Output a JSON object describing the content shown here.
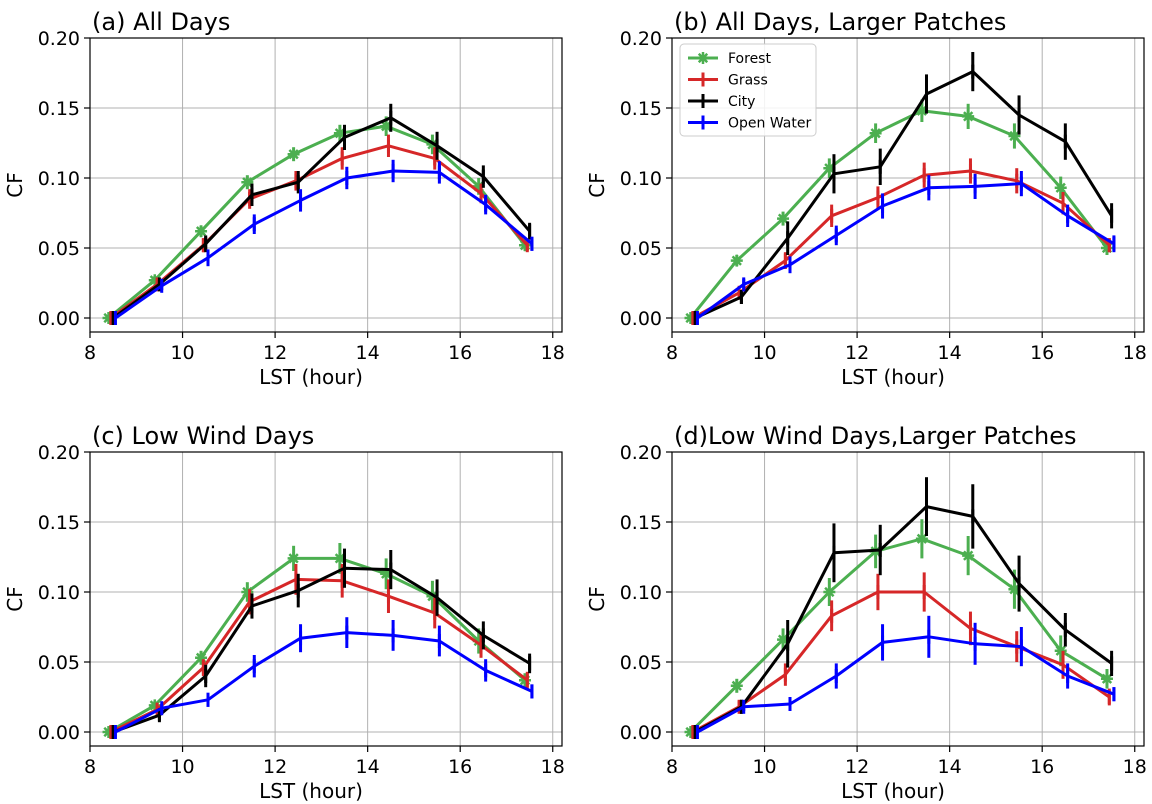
{
  "chart_data": [
    {
      "type": "line",
      "title": "(a) All Days",
      "xlabel": "LST (hour)",
      "ylabel": "CF",
      "xlim": [
        8,
        18.2
      ],
      "ylim": [
        -0.01,
        0.2
      ],
      "xticks": [
        8,
        10,
        12,
        14,
        16,
        18
      ],
      "yticks": [
        0.0,
        0.05,
        0.1,
        0.15,
        0.2
      ],
      "xtick_labels": [
        "8",
        "10",
        "12",
        "14",
        "16",
        "18"
      ],
      "ytick_labels": [
        "0.00",
        "0.05",
        "0.10",
        "0.15",
        "0.20"
      ],
      "grid": true,
      "legend": null,
      "series": [
        {
          "name": "Forest",
          "color": "#4caf50",
          "marker": "star",
          "x": [
            8.4,
            9.4,
            10.4,
            11.4,
            12.4,
            13.4,
            14.4,
            15.4,
            16.4,
            17.4
          ],
          "y": [
            0.0,
            0.027,
            0.062,
            0.097,
            0.117,
            0.132,
            0.137,
            0.124,
            0.094,
            0.052
          ],
          "err": [
            0,
            0.003,
            0.004,
            0.005,
            0.005,
            0.006,
            0.007,
            0.007,
            0.006,
            0.004
          ]
        },
        {
          "name": "Grass",
          "color": "#d62728",
          "marker": "bar",
          "x": [
            8.45,
            9.45,
            10.45,
            11.45,
            12.45,
            13.45,
            14.45,
            15.45,
            16.45,
            17.45
          ],
          "y": [
            0.0,
            0.024,
            0.052,
            0.085,
            0.098,
            0.114,
            0.123,
            0.114,
            0.089,
            0.052
          ],
          "err": [
            0,
            0.003,
            0.005,
            0.007,
            0.007,
            0.008,
            0.008,
            0.008,
            0.007,
            0.004
          ]
        },
        {
          "name": "City",
          "color": "#000000",
          "marker": "bar",
          "x": [
            8.5,
            9.5,
            10.5,
            11.5,
            12.5,
            13.5,
            14.5,
            15.5,
            16.5,
            17.5
          ],
          "y": [
            0.0,
            0.024,
            0.053,
            0.088,
            0.097,
            0.129,
            0.143,
            0.123,
            0.101,
            0.062
          ],
          "err": [
            0,
            0.003,
            0.006,
            0.008,
            0.008,
            0.009,
            0.01,
            0.01,
            0.008,
            0.006
          ]
        },
        {
          "name": "Open Water",
          "color": "#0000ff",
          "marker": "bar",
          "x": [
            8.55,
            9.55,
            10.55,
            11.55,
            12.55,
            13.55,
            14.55,
            15.55,
            16.55,
            17.55
          ],
          "y": [
            0.0,
            0.023,
            0.043,
            0.067,
            0.084,
            0.1,
            0.105,
            0.104,
            0.081,
            0.053
          ],
          "err": [
            0,
            0.003,
            0.006,
            0.007,
            0.008,
            0.008,
            0.008,
            0.008,
            0.007,
            0.005
          ]
        }
      ]
    },
    {
      "type": "line",
      "title": "(b) All Days, Larger Patches",
      "xlabel": "LST (hour)",
      "ylabel": "CF",
      "xlim": [
        8,
        18.2
      ],
      "ylim": [
        -0.01,
        0.2
      ],
      "xticks": [
        8,
        10,
        12,
        14,
        16,
        18
      ],
      "yticks": [
        0.0,
        0.05,
        0.1,
        0.15,
        0.2
      ],
      "xtick_labels": [
        "8",
        "10",
        "12",
        "14",
        "16",
        "18"
      ],
      "ytick_labels": [
        "0.00",
        "0.05",
        "0.10",
        "0.15",
        "0.20"
      ],
      "grid": true,
      "legend": "top-left",
      "series": [
        {
          "name": "Forest",
          "color": "#4caf50",
          "marker": "star",
          "x": [
            8.4,
            9.4,
            10.4,
            11.4,
            12.4,
            13.4,
            14.4,
            15.4,
            16.4,
            17.4
          ],
          "y": [
            0.0,
            0.041,
            0.071,
            0.107,
            0.132,
            0.148,
            0.144,
            0.13,
            0.093,
            0.05
          ],
          "err": [
            0,
            0.004,
            0.005,
            0.007,
            0.007,
            0.008,
            0.009,
            0.009,
            0.008,
            0.005
          ]
        },
        {
          "name": "Grass",
          "color": "#d62728",
          "marker": "bar",
          "x": [
            8.45,
            9.45,
            10.45,
            11.45,
            12.45,
            13.45,
            14.45,
            15.45,
            16.45,
            17.45
          ],
          "y": [
            0.0,
            0.018,
            0.041,
            0.073,
            0.086,
            0.102,
            0.105,
            0.098,
            0.082,
            0.052
          ],
          "err": [
            0,
            0.003,
            0.006,
            0.008,
            0.008,
            0.009,
            0.009,
            0.009,
            0.008,
            0.005
          ]
        },
        {
          "name": "City",
          "color": "#000000",
          "marker": "bar",
          "x": [
            8.5,
            9.5,
            10.5,
            11.5,
            12.5,
            13.5,
            14.5,
            15.5,
            16.5,
            17.5
          ],
          "y": [
            0.0,
            0.015,
            0.057,
            0.103,
            0.108,
            0.16,
            0.176,
            0.145,
            0.126,
            0.073
          ],
          "err": [
            0,
            0.005,
            0.012,
            0.014,
            0.013,
            0.014,
            0.014,
            0.014,
            0.013,
            0.009
          ]
        },
        {
          "name": "Open Water",
          "color": "#0000ff",
          "marker": "bar",
          "x": [
            8.55,
            9.55,
            10.55,
            11.55,
            12.55,
            13.55,
            14.55,
            15.55,
            16.55,
            17.55
          ],
          "y": [
            0.0,
            0.024,
            0.038,
            0.059,
            0.08,
            0.093,
            0.094,
            0.096,
            0.073,
            0.053
          ],
          "err": [
            0,
            0.004,
            0.006,
            0.007,
            0.009,
            0.009,
            0.009,
            0.009,
            0.008,
            0.006
          ]
        }
      ]
    },
    {
      "type": "line",
      "title": "(c) Low Wind Days",
      "xlabel": "LST (hour)",
      "ylabel": "CF",
      "xlim": [
        8,
        18.2
      ],
      "ylim": [
        -0.01,
        0.2
      ],
      "xticks": [
        8,
        10,
        12,
        14,
        16,
        18
      ],
      "yticks": [
        0.0,
        0.05,
        0.1,
        0.15,
        0.2
      ],
      "xtick_labels": [
        "8",
        "10",
        "12",
        "14",
        "16",
        "18"
      ],
      "ytick_labels": [
        "0.00",
        "0.05",
        "0.10",
        "0.15",
        "0.20"
      ],
      "grid": true,
      "legend": null,
      "series": [
        {
          "name": "Forest",
          "color": "#4caf50",
          "marker": "star",
          "x": [
            8.4,
            9.4,
            10.4,
            11.4,
            12.4,
            13.4,
            14.4,
            15.4,
            16.4,
            17.4
          ],
          "y": [
            0.0,
            0.019,
            0.053,
            0.1,
            0.124,
            0.124,
            0.113,
            0.097,
            0.065,
            0.037
          ],
          "err": [
            0,
            0.003,
            0.005,
            0.007,
            0.009,
            0.011,
            0.011,
            0.011,
            0.009,
            0.005
          ]
        },
        {
          "name": "Grass",
          "color": "#d62728",
          "marker": "bar",
          "x": [
            8.45,
            9.45,
            10.45,
            11.45,
            12.45,
            13.45,
            14.45,
            15.45,
            16.45,
            17.45
          ],
          "y": [
            0.0,
            0.016,
            0.046,
            0.093,
            0.109,
            0.108,
            0.097,
            0.085,
            0.062,
            0.037
          ],
          "err": [
            0,
            0.003,
            0.006,
            0.009,
            0.011,
            0.012,
            0.012,
            0.011,
            0.009,
            0.006
          ]
        },
        {
          "name": "City",
          "color": "#000000",
          "marker": "bar",
          "x": [
            8.5,
            9.5,
            10.5,
            11.5,
            12.5,
            13.5,
            14.5,
            15.5,
            16.5,
            17.5
          ],
          "y": [
            0.0,
            0.012,
            0.04,
            0.09,
            0.101,
            0.117,
            0.116,
            0.096,
            0.069,
            0.049
          ],
          "err": [
            0,
            0.004,
            0.008,
            0.009,
            0.012,
            0.014,
            0.014,
            0.013,
            0.01,
            0.007
          ]
        },
        {
          "name": "Open Water",
          "color": "#0000ff",
          "marker": "bar",
          "x": [
            8.55,
            9.55,
            10.55,
            11.55,
            12.55,
            13.55,
            14.55,
            15.55,
            16.55,
            17.55
          ],
          "y": [
            0.0,
            0.017,
            0.023,
            0.047,
            0.067,
            0.071,
            0.069,
            0.065,
            0.044,
            0.029
          ],
          "err": [
            0,
            0.003,
            0.005,
            0.008,
            0.01,
            0.011,
            0.011,
            0.011,
            0.008,
            0.005
          ]
        }
      ]
    },
    {
      "type": "line",
      "title": "(d)Low Wind Days,Larger Patches",
      "xlabel": "LST (hour)",
      "ylabel": "CF",
      "xlim": [
        8,
        18.2
      ],
      "ylim": [
        -0.01,
        0.2
      ],
      "xticks": [
        8,
        10,
        12,
        14,
        16,
        18
      ],
      "yticks": [
        0.0,
        0.05,
        0.1,
        0.15,
        0.2
      ],
      "xtick_labels": [
        "8",
        "10",
        "12",
        "14",
        "16",
        "18"
      ],
      "ytick_labels": [
        "0.00",
        "0.05",
        "0.10",
        "0.15",
        "0.20"
      ],
      "grid": true,
      "legend": null,
      "series": [
        {
          "name": "Forest",
          "color": "#4caf50",
          "marker": "star",
          "x": [
            8.4,
            9.4,
            10.4,
            11.4,
            12.4,
            13.4,
            14.4,
            15.4,
            16.4,
            17.4
          ],
          "y": [
            0.0,
            0.033,
            0.066,
            0.1,
            0.129,
            0.138,
            0.126,
            0.102,
            0.058,
            0.038
          ],
          "err": [
            0,
            0.005,
            0.008,
            0.01,
            0.012,
            0.014,
            0.014,
            0.014,
            0.011,
            0.007
          ]
        },
        {
          "name": "Grass",
          "color": "#d62728",
          "marker": "bar",
          "x": [
            8.45,
            9.45,
            10.45,
            11.45,
            12.45,
            13.45,
            14.45,
            15.45,
            16.45,
            17.45
          ],
          "y": [
            0.0,
            0.018,
            0.041,
            0.083,
            0.1,
            0.1,
            0.074,
            0.061,
            0.048,
            0.025
          ],
          "err": [
            0,
            0.004,
            0.008,
            0.011,
            0.013,
            0.014,
            0.012,
            0.011,
            0.01,
            0.006
          ]
        },
        {
          "name": "City",
          "color": "#000000",
          "marker": "bar",
          "x": [
            8.5,
            9.5,
            10.5,
            11.5,
            12.5,
            13.5,
            14.5,
            15.5,
            16.5,
            17.5
          ],
          "y": [
            0.0,
            0.018,
            0.063,
            0.128,
            0.13,
            0.161,
            0.154,
            0.106,
            0.073,
            0.049
          ],
          "err": [
            0,
            0.005,
            0.017,
            0.021,
            0.018,
            0.021,
            0.023,
            0.02,
            0.012,
            0.009
          ]
        },
        {
          "name": "Open Water",
          "color": "#0000ff",
          "marker": "bar",
          "x": [
            8.55,
            9.55,
            10.55,
            11.55,
            12.55,
            13.55,
            14.55,
            15.55,
            16.55,
            17.55
          ],
          "y": [
            0.0,
            0.018,
            0.02,
            0.04,
            0.064,
            0.068,
            0.063,
            0.061,
            0.04,
            0.027
          ],
          "err": [
            0,
            0.003,
            0.004,
            0.009,
            0.013,
            0.015,
            0.015,
            0.014,
            0.009,
            0.005
          ]
        }
      ]
    }
  ]
}
